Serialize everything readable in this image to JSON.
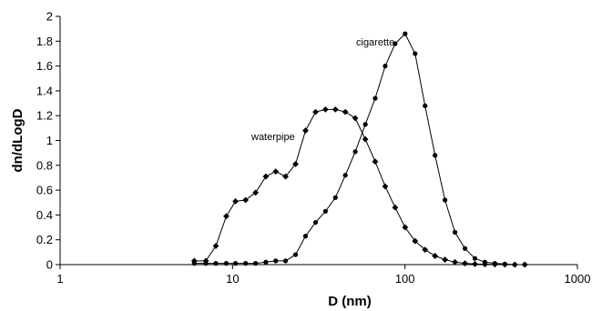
{
  "chart_data": {
    "type": "line",
    "xscale": "log",
    "xlabel": "D (nm)",
    "ylabel": "dn/dLogD",
    "xlim": [
      1,
      1000
    ],
    "ylim": [
      0,
      2
    ],
    "xticks": [
      1,
      10,
      100,
      1000
    ],
    "xtick_labels": [
      "1",
      "10",
      "100",
      "1000"
    ],
    "yticks": [
      0,
      0.2,
      0.4,
      0.6,
      0.8,
      1,
      1.2,
      1.4,
      1.6,
      1.8,
      2
    ],
    "ytick_labels": [
      "0",
      "0.2",
      "0.4",
      "0.6",
      "0.8",
      "1",
      "1.2",
      "1.4",
      "1.6",
      "1.8",
      "2"
    ],
    "grid": false,
    "legend": "none",
    "line_color": "#000000",
    "series": [
      {
        "name": "waterpipe",
        "marker": "diamond",
        "x": [
          6.0,
          7.0,
          8.0,
          9.2,
          10.4,
          11.9,
          13.6,
          15.6,
          17.8,
          20.3,
          23.2,
          26.5,
          30.3,
          34.6,
          39.5,
          45.1,
          51.5,
          58.9,
          67.2,
          76.8,
          87.7,
          100.2,
          114.5,
          130.8,
          149.4,
          170.7,
          195.0,
          222.8,
          254.5,
          290.7,
          332.1,
          379.4,
          433.4,
          495.1
        ],
        "y": [
          0.03,
          0.03,
          0.15,
          0.39,
          0.51,
          0.52,
          0.58,
          0.71,
          0.75,
          0.71,
          0.81,
          1.08,
          1.23,
          1.25,
          1.25,
          1.23,
          1.18,
          1.01,
          0.83,
          0.63,
          0.46,
          0.3,
          0.19,
          0.12,
          0.07,
          0.04,
          0.02,
          0.01,
          0.005,
          0.003,
          0.002,
          0.001,
          0,
          0
        ]
      },
      {
        "name": "cigarette",
        "marker": "circle",
        "x": [
          6.0,
          7.0,
          8.0,
          9.2,
          10.4,
          11.9,
          13.6,
          15.6,
          17.8,
          20.3,
          23.2,
          26.5,
          30.3,
          34.6,
          39.5,
          45.1,
          51.5,
          58.9,
          67.2,
          76.8,
          87.7,
          100.2,
          114.5,
          130.8,
          149.4,
          170.7,
          195.0,
          222.8,
          254.5,
          290.7,
          332.1,
          379.4,
          433.4,
          495.1
        ],
        "y": [
          0.01,
          0.01,
          0.01,
          0.01,
          0.01,
          0.01,
          0.01,
          0.02,
          0.03,
          0.03,
          0.08,
          0.23,
          0.34,
          0.43,
          0.54,
          0.72,
          0.91,
          1.13,
          1.34,
          1.6,
          1.78,
          1.86,
          1.7,
          1.28,
          0.88,
          0.52,
          0.26,
          0.13,
          0.05,
          0.02,
          0.01,
          0.005,
          0,
          0
        ]
      }
    ],
    "annotations": [
      {
        "text": "waterpipe"
      },
      {
        "text": "cigarette"
      }
    ]
  }
}
